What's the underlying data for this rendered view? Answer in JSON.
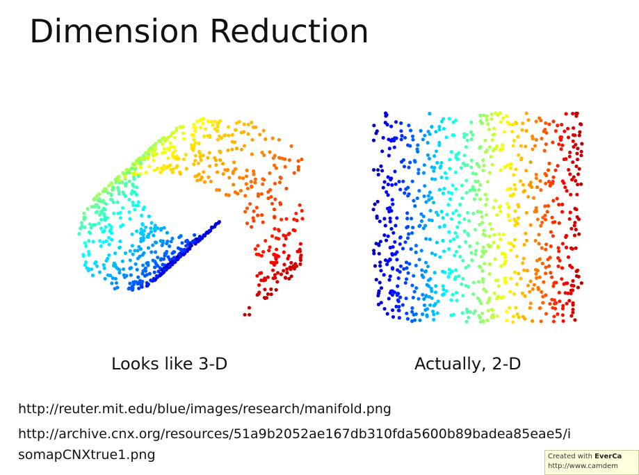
{
  "title": "Dimension Reduction",
  "captions": {
    "left": "Looks like 3-D",
    "right": "Actually, 2-D"
  },
  "sources": [
    "http://reuter.mit.edu/blue/images/research/manifold.png",
    "http://archive.cnx.org/resources/51a9b2052ae167db310fda5600b89badea85eae5/i",
    "somapCNXtrue1.png"
  ],
  "watermark": {
    "line1_prefix": "Created with ",
    "line1_brand": "EverCa",
    "line2": "http://www.camdem"
  }
}
